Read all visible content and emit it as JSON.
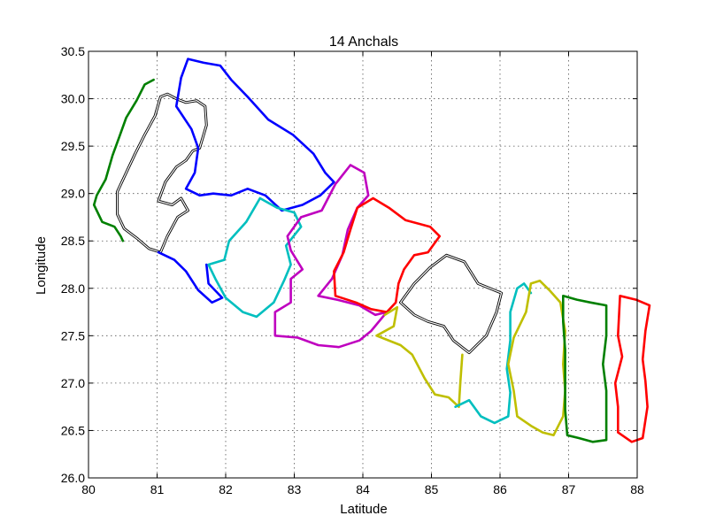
{
  "chart_data": {
    "type": "line",
    "title": "14 Anchals",
    "xlabel": "Latitude",
    "ylabel": "Longitude",
    "xlim": [
      80,
      88
    ],
    "ylim": [
      26.0,
      30.5
    ],
    "xticks": [
      "80",
      "81",
      "82",
      "83",
      "84",
      "85",
      "86",
      "87",
      "88"
    ],
    "yticks": [
      "26.0",
      "26.5",
      "27.0",
      "27.5",
      "28.0",
      "28.5",
      "29.0",
      "29.5",
      "30.0",
      "30.5"
    ],
    "xtick_values": [
      80,
      81,
      82,
      83,
      84,
      85,
      86,
      87,
      88
    ],
    "ytick_values": [
      26.0,
      26.5,
      27.0,
      27.5,
      28.0,
      28.5,
      29.0,
      29.5,
      30.0,
      30.5
    ],
    "grid": true,
    "series": [
      {
        "color": "#008000",
        "style": "solid",
        "points": [
          [
            80.95,
            30.2
          ],
          [
            80.82,
            30.15
          ],
          [
            80.7,
            29.98
          ],
          [
            80.55,
            29.8
          ],
          [
            80.45,
            29.6
          ],
          [
            80.35,
            29.4
          ],
          [
            80.25,
            29.15
          ],
          [
            80.12,
            28.98
          ],
          [
            80.08,
            28.88
          ],
          [
            80.2,
            28.7
          ],
          [
            80.38,
            28.65
          ],
          [
            80.47,
            28.55
          ],
          [
            80.5,
            28.5
          ]
        ]
      },
      {
        "color": "#ffffff",
        "style": "double",
        "points": [
          [
            81.05,
            30.02
          ],
          [
            80.97,
            29.82
          ],
          [
            80.82,
            29.62
          ],
          [
            80.68,
            29.42
          ],
          [
            80.55,
            29.22
          ],
          [
            80.42,
            29.02
          ],
          [
            80.42,
            28.78
          ],
          [
            80.52,
            28.63
          ],
          [
            80.72,
            28.52
          ],
          [
            80.88,
            28.42
          ],
          [
            81.05,
            28.38
          ],
          [
            81.15,
            28.55
          ],
          [
            81.3,
            28.75
          ],
          [
            81.45,
            28.82
          ],
          [
            81.35,
            28.95
          ],
          [
            81.22,
            28.88
          ],
          [
            81.02,
            28.92
          ],
          [
            81.12,
            29.12
          ],
          [
            81.28,
            29.28
          ],
          [
            81.42,
            29.35
          ],
          [
            81.52,
            29.45
          ],
          [
            81.62,
            29.48
          ],
          [
            81.72,
            29.72
          ],
          [
            81.7,
            29.92
          ],
          [
            81.58,
            29.98
          ],
          [
            81.42,
            29.96
          ],
          [
            81.28,
            30.0
          ],
          [
            81.15,
            30.05
          ],
          [
            81.05,
            30.02
          ]
        ]
      },
      {
        "color": "#0000ff",
        "style": "solid",
        "points": [
          [
            81.35,
            30.22
          ],
          [
            81.45,
            30.42
          ],
          [
            81.68,
            30.38
          ],
          [
            81.92,
            30.35
          ],
          [
            82.08,
            30.2
          ],
          [
            82.32,
            30.02
          ],
          [
            82.62,
            29.78
          ],
          [
            82.98,
            29.62
          ],
          [
            83.28,
            29.42
          ],
          [
            83.45,
            29.22
          ],
          [
            83.58,
            29.12
          ],
          [
            83.38,
            28.98
          ],
          [
            83.12,
            28.88
          ],
          [
            82.82,
            28.82
          ],
          [
            82.58,
            28.98
          ],
          [
            82.32,
            29.05
          ],
          [
            82.08,
            28.98
          ],
          [
            81.82,
            29.0
          ],
          [
            81.62,
            28.98
          ],
          [
            81.42,
            29.05
          ],
          [
            81.55,
            29.22
          ],
          [
            81.6,
            29.48
          ],
          [
            81.5,
            29.68
          ],
          [
            81.28,
            29.92
          ],
          [
            81.35,
            30.22
          ]
        ]
      },
      {
        "color": "#0000ff",
        "style": "solid",
        "points": [
          [
            81.02,
            28.38
          ],
          [
            81.25,
            28.3
          ],
          [
            81.42,
            28.18
          ],
          [
            81.6,
            27.98
          ],
          [
            81.8,
            27.85
          ],
          [
            81.95,
            27.9
          ],
          [
            81.75,
            28.05
          ],
          [
            81.72,
            28.25
          ]
        ]
      },
      {
        "color": "#00bfbf",
        "style": "solid",
        "points": [
          [
            82.5,
            28.95
          ],
          [
            82.3,
            28.7
          ],
          [
            82.05,
            28.5
          ],
          [
            81.98,
            28.3
          ],
          [
            81.75,
            28.25
          ],
          [
            81.85,
            28.1
          ],
          [
            82.0,
            27.9
          ],
          [
            82.25,
            27.75
          ],
          [
            82.45,
            27.7
          ],
          [
            82.7,
            27.85
          ],
          [
            82.85,
            28.08
          ],
          [
            82.95,
            28.25
          ],
          [
            82.88,
            28.45
          ],
          [
            83.1,
            28.65
          ],
          [
            83.0,
            28.8
          ],
          [
            82.75,
            28.85
          ],
          [
            82.5,
            28.95
          ]
        ]
      },
      {
        "color": "#bf00bf",
        "style": "solid",
        "points": [
          [
            83.1,
            28.75
          ],
          [
            83.4,
            28.82
          ],
          [
            83.6,
            29.1
          ],
          [
            83.82,
            29.3
          ],
          [
            84.02,
            29.22
          ],
          [
            84.08,
            28.98
          ],
          [
            83.92,
            28.85
          ],
          [
            83.78,
            28.62
          ],
          [
            83.7,
            28.35
          ],
          [
            83.55,
            28.1
          ],
          [
            83.35,
            27.92
          ],
          [
            83.62,
            27.88
          ],
          [
            83.95,
            27.82
          ],
          [
            84.18,
            27.72
          ],
          [
            84.35,
            27.75
          ],
          [
            84.12,
            27.55
          ],
          [
            83.95,
            27.45
          ],
          [
            83.65,
            27.38
          ],
          [
            83.35,
            27.4
          ],
          [
            83.05,
            27.48
          ],
          [
            82.72,
            27.5
          ],
          [
            82.72,
            27.75
          ],
          [
            82.95,
            27.85
          ],
          [
            82.95,
            28.1
          ],
          [
            83.12,
            28.2
          ],
          [
            82.95,
            28.4
          ],
          [
            82.9,
            28.55
          ],
          [
            83.1,
            28.75
          ]
        ]
      },
      {
        "color": "#ff0000",
        "style": "solid",
        "points": [
          [
            83.92,
            28.85
          ],
          [
            84.15,
            28.95
          ],
          [
            84.38,
            28.85
          ],
          [
            84.62,
            28.72
          ],
          [
            84.98,
            28.65
          ],
          [
            85.12,
            28.55
          ],
          [
            84.95,
            28.38
          ],
          [
            84.75,
            28.35
          ],
          [
            84.6,
            28.2
          ],
          [
            84.52,
            28.05
          ],
          [
            84.48,
            27.85
          ],
          [
            84.35,
            27.75
          ],
          [
            84.12,
            27.78
          ],
          [
            83.9,
            27.85
          ],
          [
            83.6,
            27.92
          ],
          [
            83.58,
            28.18
          ],
          [
            83.72,
            28.38
          ],
          [
            83.82,
            28.62
          ],
          [
            83.92,
            28.85
          ]
        ]
      },
      {
        "color": "#ffffff",
        "style": "double",
        "points": [
          [
            84.55,
            27.85
          ],
          [
            84.75,
            28.05
          ],
          [
            84.98,
            28.22
          ],
          [
            85.22,
            28.35
          ],
          [
            85.48,
            28.28
          ],
          [
            85.68,
            28.05
          ],
          [
            86.02,
            27.95
          ],
          [
            85.95,
            27.75
          ],
          [
            85.8,
            27.5
          ],
          [
            85.55,
            27.32
          ],
          [
            85.32,
            27.45
          ],
          [
            85.18,
            27.6
          ],
          [
            84.95,
            27.65
          ],
          [
            84.75,
            27.72
          ],
          [
            84.55,
            27.85
          ]
        ]
      },
      {
        "color": "#bfbf00",
        "style": "solid",
        "points": [
          [
            84.32,
            27.72
          ],
          [
            84.5,
            27.8
          ],
          [
            84.45,
            27.6
          ],
          [
            84.2,
            27.5
          ],
          [
            84.55,
            27.4
          ],
          [
            84.72,
            27.3
          ],
          [
            84.9,
            27.05
          ],
          [
            85.05,
            26.88
          ],
          [
            85.25,
            26.85
          ],
          [
            85.4,
            26.75
          ],
          [
            85.42,
            27.0
          ],
          [
            85.45,
            27.3
          ]
        ]
      },
      {
        "color": "#00bfbf",
        "style": "solid",
        "points": [
          [
            85.35,
            26.75
          ],
          [
            85.55,
            26.82
          ],
          [
            85.72,
            26.65
          ],
          [
            85.92,
            26.58
          ],
          [
            86.12,
            26.65
          ],
          [
            86.15,
            26.9
          ],
          [
            86.1,
            27.15
          ],
          [
            86.15,
            27.45
          ],
          [
            86.15,
            27.75
          ],
          [
            86.25,
            28.0
          ],
          [
            86.35,
            28.05
          ],
          [
            86.45,
            27.95
          ]
        ]
      },
      {
        "color": "#bfbf00",
        "style": "solid",
        "points": [
          [
            86.45,
            28.05
          ],
          [
            86.58,
            28.08
          ],
          [
            86.72,
            27.98
          ],
          [
            86.88,
            27.85
          ],
          [
            86.95,
            27.55
          ],
          [
            86.92,
            27.2
          ],
          [
            86.95,
            26.92
          ],
          [
            86.92,
            26.65
          ],
          [
            86.78,
            26.45
          ],
          [
            86.62,
            26.48
          ],
          [
            86.45,
            26.55
          ],
          [
            86.25,
            26.65
          ],
          [
            86.2,
            26.92
          ],
          [
            86.12,
            27.2
          ],
          [
            86.2,
            27.48
          ],
          [
            86.38,
            27.75
          ],
          [
            86.45,
            28.05
          ]
        ]
      },
      {
        "color": "#008000",
        "style": "solid",
        "points": [
          [
            86.92,
            27.92
          ],
          [
            87.12,
            27.88
          ],
          [
            87.32,
            27.85
          ],
          [
            87.55,
            27.82
          ],
          [
            87.55,
            27.5
          ],
          [
            87.5,
            27.2
          ],
          [
            87.55,
            26.92
          ],
          [
            87.55,
            26.58
          ],
          [
            87.55,
            26.4
          ],
          [
            87.35,
            26.38
          ],
          [
            87.15,
            26.42
          ],
          [
            86.98,
            26.45
          ],
          [
            86.95,
            26.72
          ],
          [
            86.95,
            27.05
          ],
          [
            86.95,
            27.35
          ],
          [
            86.92,
            27.65
          ],
          [
            86.92,
            27.92
          ]
        ]
      },
      {
        "color": "#ff0000",
        "style": "solid",
        "points": [
          [
            87.75,
            27.92
          ],
          [
            87.98,
            27.88
          ],
          [
            88.18,
            27.82
          ],
          [
            88.12,
            27.55
          ],
          [
            88.08,
            27.25
          ],
          [
            88.12,
            27.02
          ],
          [
            88.15,
            26.75
          ],
          [
            88.08,
            26.42
          ],
          [
            87.92,
            26.38
          ],
          [
            87.72,
            26.48
          ],
          [
            87.72,
            26.75
          ],
          [
            87.68,
            27.0
          ],
          [
            87.78,
            27.28
          ],
          [
            87.72,
            27.5
          ],
          [
            87.75,
            27.92
          ]
        ]
      }
    ]
  }
}
